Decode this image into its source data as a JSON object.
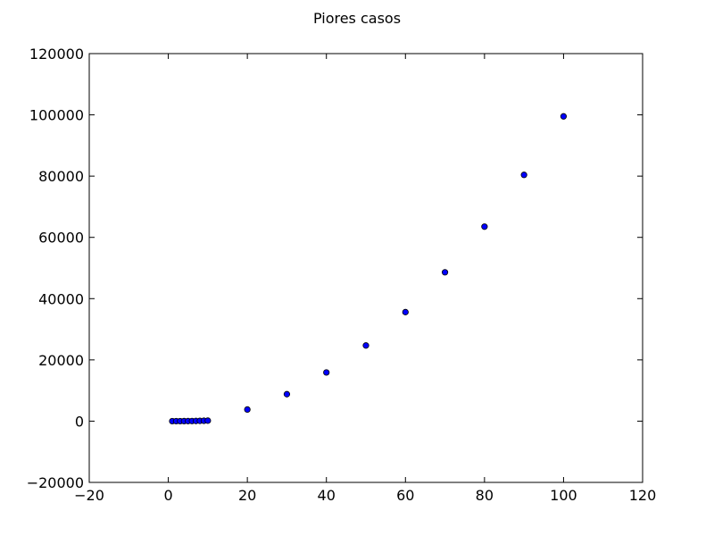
{
  "chart_data": {
    "type": "scatter",
    "title": "Piores casos",
    "xlabel": "",
    "ylabel": "",
    "xlim": [
      -20,
      120
    ],
    "ylim": [
      -20000,
      120000
    ],
    "x_ticks": [
      -20,
      0,
      20,
      40,
      60,
      80,
      100,
      120
    ],
    "y_ticks": [
      -20000,
      0,
      20000,
      40000,
      60000,
      80000,
      100000,
      120000
    ],
    "x_tick_labels": [
      "−20",
      "0",
      "20",
      "40",
      "60",
      "80",
      "100",
      "120"
    ],
    "y_tick_labels": [
      "−20000",
      "0",
      "20000",
      "40000",
      "60000",
      "80000",
      "100000",
      "120000"
    ],
    "grid": false,
    "point_color": "#0000ff",
    "series": [
      {
        "x": [
          1,
          2,
          3,
          4,
          5,
          6,
          7,
          8,
          9,
          10,
          20,
          30,
          40,
          50,
          60,
          70,
          80,
          90,
          100
        ],
        "y": [
          0,
          1,
          4,
          10,
          20,
          35,
          56,
          84,
          120,
          165,
          3800,
          8800,
          15900,
          24700,
          35600,
          48600,
          63500,
          80400,
          99500
        ]
      }
    ]
  }
}
